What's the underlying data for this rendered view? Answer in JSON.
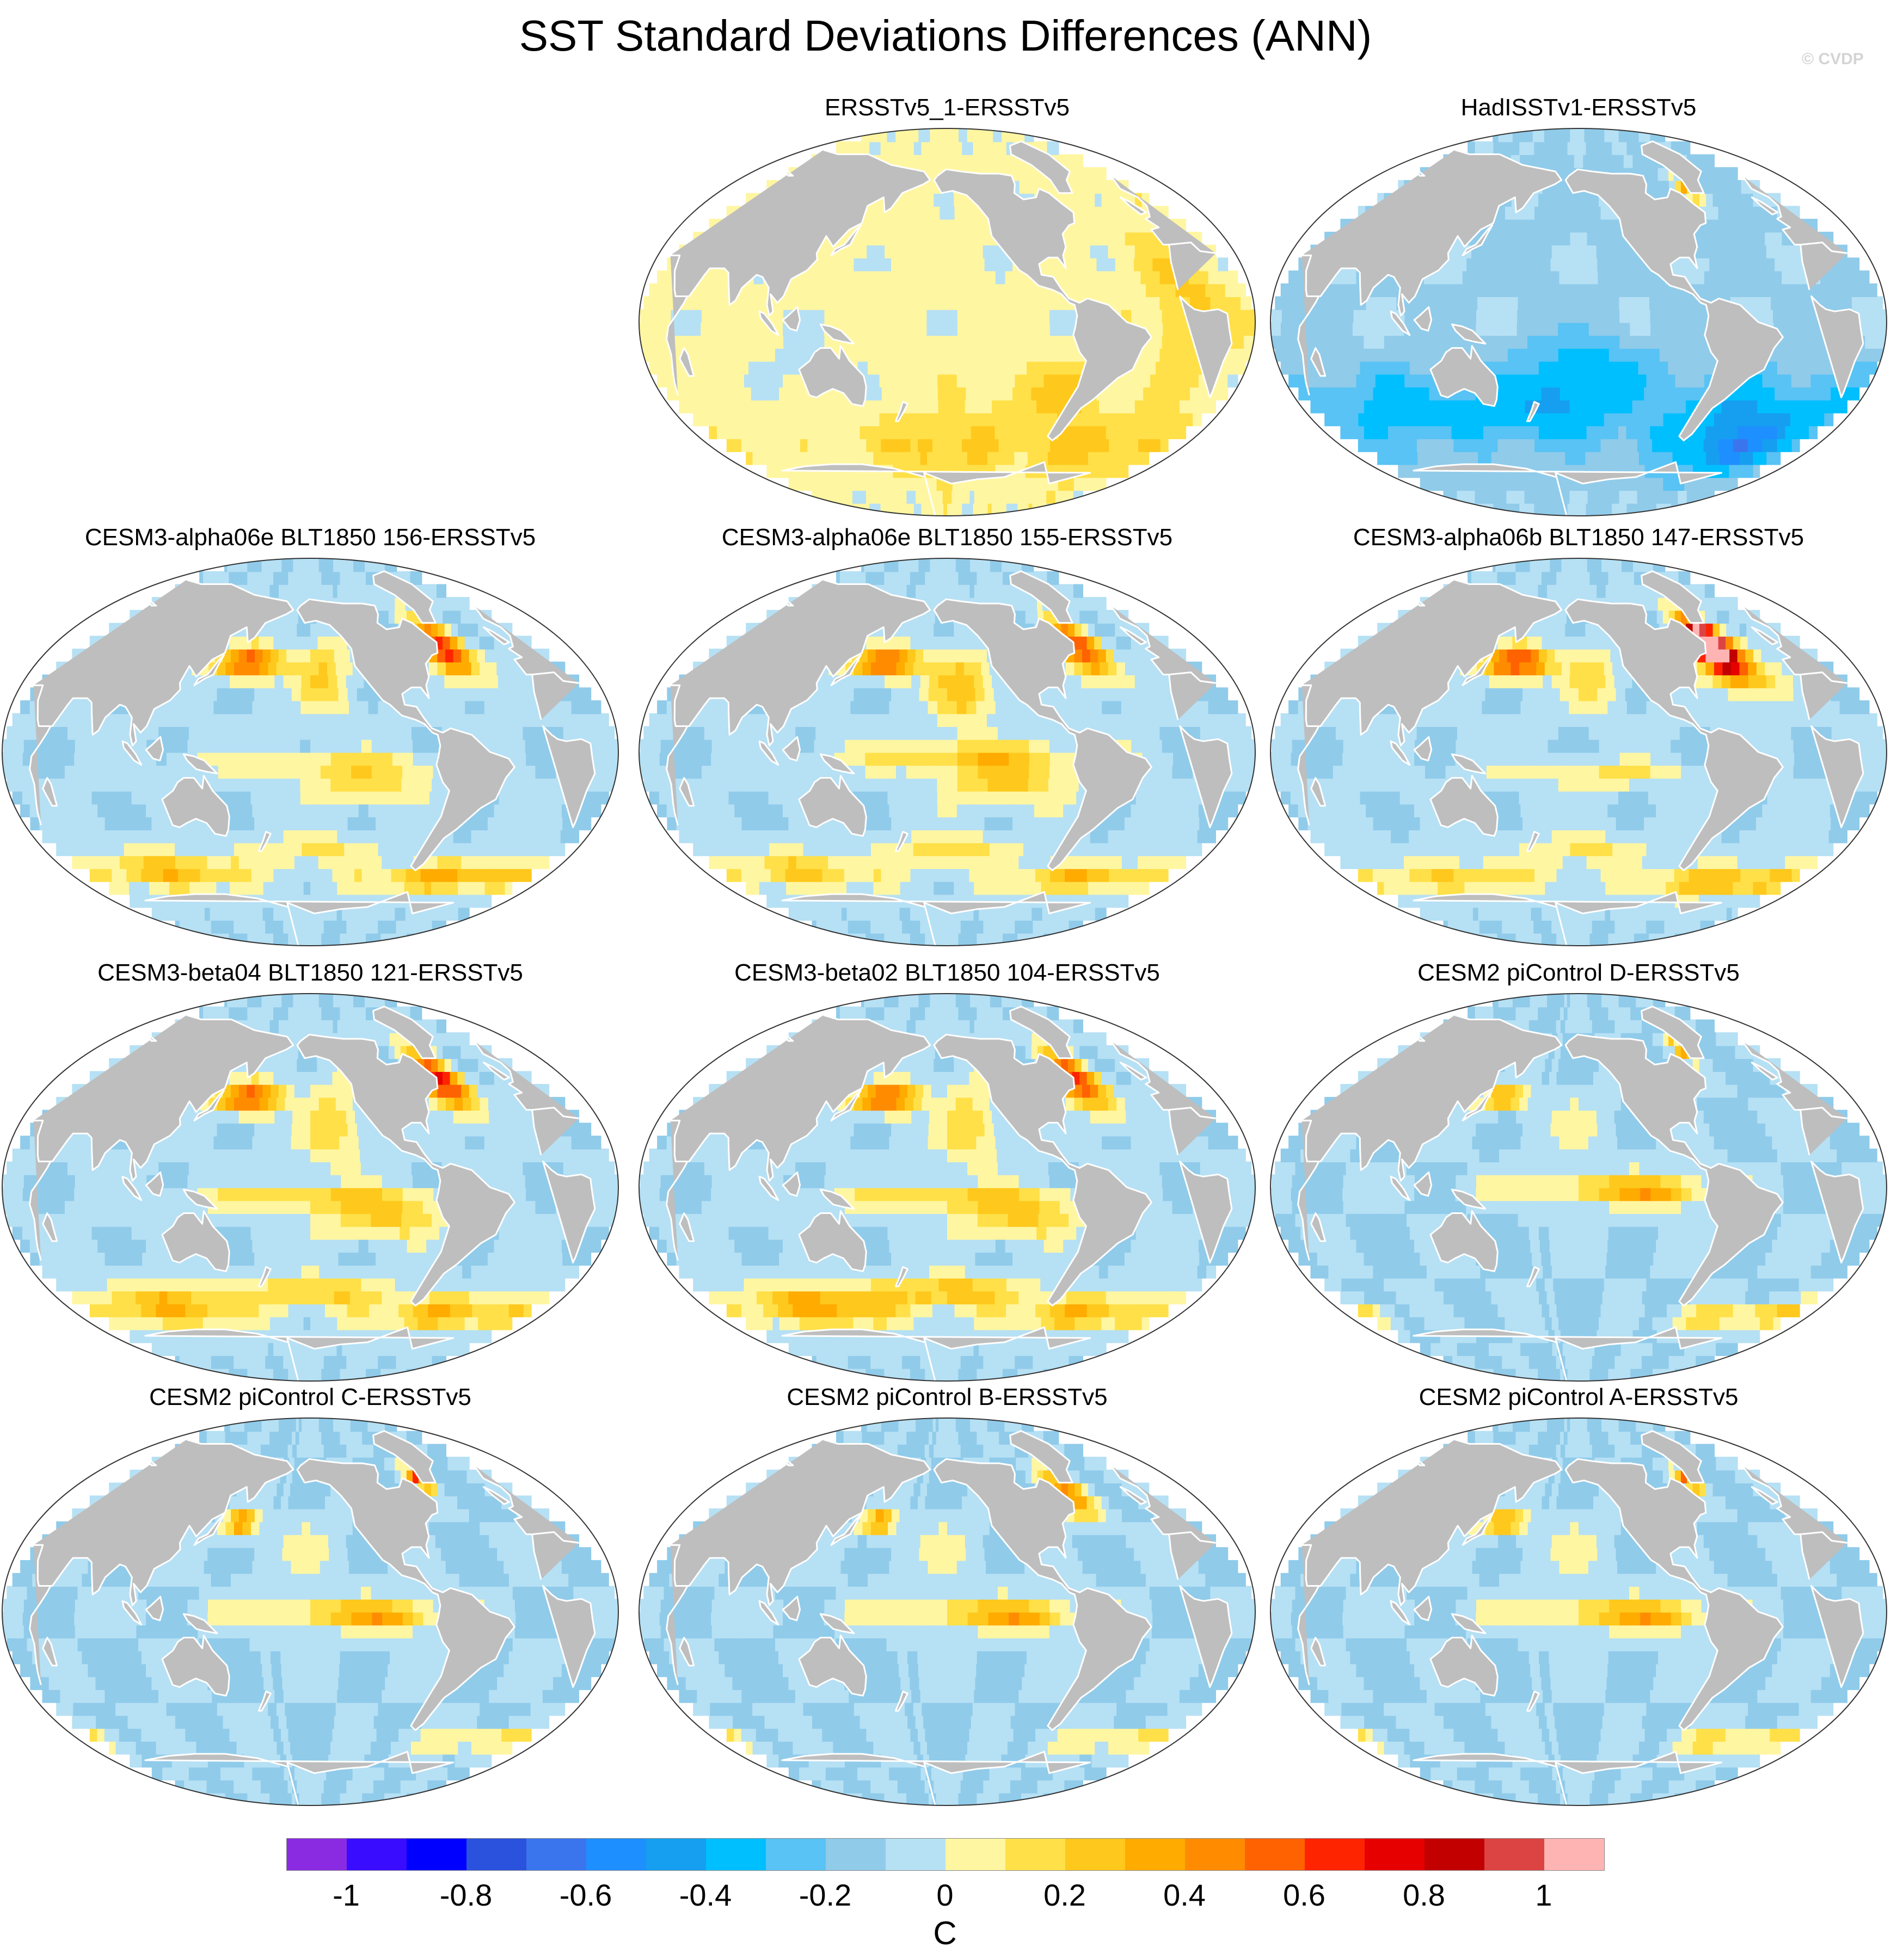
{
  "figure": {
    "title": "SST Standard Deviations Differences (ANN)",
    "credit": "© CVDP"
  },
  "colors": {
    "land": "#bebebe",
    "coast": "#ffffff",
    "outline": "#333333",
    "zero_pos": "#fff6a2",
    "zero_neg": "#b6e0f4"
  },
  "panels": [
    {
      "label": "ERSSTv5_1-ERSSTv5",
      "pattern": "obs_warm",
      "blobs": [
        [
          -160,
          -58,
          0.2,
          40,
          10
        ],
        [
          -30,
          -58,
          0.2,
          40,
          10
        ],
        [
          -10,
          5,
          0.2,
          15,
          25
        ],
        [
          -105,
          -32,
          0.1,
          25,
          10
        ],
        [
          -75,
          -35,
          0.15,
          15,
          10
        ],
        [
          120,
          -20,
          -0.1,
          12,
          10
        ]
      ]
    },
    {
      "label": "HadISSTv1-ERSSTv5",
      "pattern": "obs_cool",
      "blobs": [
        [
          -40,
          -45,
          -0.3,
          50,
          15
        ],
        [
          100,
          -40,
          -0.25,
          40,
          12
        ],
        [
          -170,
          -40,
          -0.25,
          30,
          12
        ],
        [
          -150,
          -20,
          -0.2,
          30,
          10
        ],
        [
          -50,
          62,
          0.4,
          6,
          5
        ],
        [
          -20,
          -60,
          -0.25,
          30,
          8
        ]
      ]
    },
    {
      "label": "CESM3-alpha06e BLT1850 156-ERSSTv5",
      "pattern": "cesm3",
      "blobs": [
        [
          160,
          42,
          0.7,
          18,
          5
        ],
        [
          -145,
          35,
          0.3,
          12,
          12
        ],
        [
          -150,
          -5,
          0.2,
          50,
          4
        ],
        [
          -120,
          -15,
          0.25,
          25,
          6
        ],
        [
          -50,
          48,
          0.7,
          12,
          10
        ],
        [
          -40,
          -58,
          0.4,
          50,
          5
        ],
        [
          100,
          -55,
          0.35,
          40,
          6
        ],
        [
          -150,
          -45,
          0.2,
          30,
          5
        ]
      ]
    },
    {
      "label": "CESM3-alpha06e BLT1850 155-ERSSTv5",
      "pattern": "cesm3",
      "blobs": [
        [
          160,
          42,
          0.65,
          18,
          5
        ],
        [
          -145,
          30,
          0.35,
          14,
          12
        ],
        [
          -140,
          -2,
          0.3,
          50,
          5
        ],
        [
          -120,
          -15,
          0.3,
          25,
          7
        ],
        [
          -50,
          48,
          0.65,
          12,
          10
        ],
        [
          -40,
          -58,
          0.35,
          50,
          5
        ],
        [
          100,
          -55,
          0.3,
          40,
          6
        ],
        [
          -150,
          -45,
          0.25,
          30,
          5
        ]
      ]
    },
    {
      "label": "CESM3-alpha06b BLT1850 147-ERSSTv5",
      "pattern": "cesm3",
      "blobs": [
        [
          160,
          42,
          0.75,
          18,
          5
        ],
        [
          -145,
          35,
          0.25,
          12,
          10
        ],
        [
          -140,
          -10,
          0.2,
          40,
          4
        ],
        [
          -50,
          50,
          1.05,
          10,
          8
        ],
        [
          -45,
          45,
          0.6,
          15,
          12
        ],
        [
          -30,
          -60,
          0.4,
          50,
          5
        ],
        [
          120,
          -58,
          0.3,
          40,
          5
        ],
        [
          -150,
          -45,
          0.2,
          30,
          5
        ]
      ]
    },
    {
      "label": "CESM3-beta04 BLT1850 121-ERSSTv5",
      "pattern": "cesm3",
      "blobs": [
        [
          160,
          42,
          0.7,
          16,
          5
        ],
        [
          -140,
          30,
          0.25,
          15,
          14
        ],
        [
          -150,
          -5,
          0.3,
          50,
          4
        ],
        [
          -110,
          -15,
          0.3,
          25,
          6
        ],
        [
          -50,
          50,
          0.75,
          12,
          10
        ],
        [
          -40,
          -58,
          0.35,
          50,
          6
        ],
        [
          100,
          -55,
          0.4,
          40,
          7
        ],
        [
          -150,
          -48,
          0.3,
          35,
          5
        ]
      ]
    },
    {
      "label": "CESM3-beta02 BLT1850 104-ERSSTv5",
      "pattern": "cesm3",
      "blobs": [
        [
          160,
          42,
          0.65,
          16,
          5
        ],
        [
          -140,
          30,
          0.25,
          15,
          14
        ],
        [
          -150,
          -5,
          0.3,
          50,
          4
        ],
        [
          -110,
          -15,
          0.3,
          25,
          6
        ],
        [
          -50,
          50,
          0.7,
          12,
          10
        ],
        [
          -40,
          -58,
          0.35,
          50,
          6
        ],
        [
          110,
          -55,
          0.45,
          40,
          7
        ],
        [
          -150,
          -48,
          0.35,
          35,
          5
        ]
      ]
    },
    {
      "label": "CESM2 piControl D-ERSSTv5",
      "pattern": "cesm2",
      "blobs": [
        [
          -140,
          0,
          0.3,
          45,
          5
        ],
        [
          -110,
          -3,
          0.25,
          20,
          5
        ],
        [
          150,
          42,
          0.5,
          12,
          4
        ],
        [
          -160,
          30,
          0.15,
          20,
          8
        ],
        [
          -50,
          65,
          0.5,
          6,
          4
        ],
        [
          -35,
          -60,
          0.3,
          30,
          4
        ],
        [
          20,
          -58,
          0.25,
          20,
          4
        ]
      ]
    },
    {
      "label": "CESM2 piControl C-ERSSTv5",
      "pattern": "cesm2",
      "blobs": [
        [
          -140,
          0,
          0.3,
          45,
          5
        ],
        [
          -110,
          -3,
          0.25,
          20,
          5
        ],
        [
          155,
          42,
          0.6,
          8,
          4
        ],
        [
          -160,
          30,
          0.15,
          20,
          8
        ],
        [
          -50,
          62,
          0.7,
          6,
          4
        ],
        [
          -35,
          -60,
          0.2,
          30,
          4
        ],
        [
          20,
          -58,
          0.2,
          20,
          4
        ]
      ]
    },
    {
      "label": "CESM2 piControl B-ERSSTv5",
      "pattern": "cesm2",
      "blobs": [
        [
          -140,
          0,
          0.3,
          45,
          5
        ],
        [
          -110,
          -3,
          0.25,
          20,
          5
        ],
        [
          155,
          42,
          0.55,
          8,
          4
        ],
        [
          -160,
          30,
          0.15,
          20,
          8
        ],
        [
          -50,
          55,
          0.5,
          12,
          8
        ],
        [
          -35,
          -60,
          0.2,
          30,
          4
        ],
        [
          20,
          -58,
          0.2,
          20,
          4
        ]
      ]
    },
    {
      "label": "CESM2 piControl A-ERSSTv5",
      "pattern": "cesm2",
      "blobs": [
        [
          -140,
          0,
          0.3,
          45,
          5
        ],
        [
          -110,
          -3,
          0.25,
          20,
          5
        ],
        [
          150,
          42,
          0.5,
          12,
          4
        ],
        [
          -160,
          30,
          0.15,
          20,
          8
        ],
        [
          -50,
          62,
          0.6,
          6,
          4
        ],
        [
          -35,
          -60,
          0.25,
          30,
          4
        ],
        [
          20,
          -58,
          0.2,
          20,
          4
        ]
      ]
    }
  ],
  "colorbar": {
    "units": "C",
    "colors": [
      "#8a2be2",
      "#3a0cff",
      "#0000ff",
      "#2b52dc",
      "#3a75ee",
      "#1e8fff",
      "#169ff0",
      "#00bfff",
      "#58c3f4",
      "#90cbea",
      "#b6e0f4",
      "#fff6a2",
      "#ffe048",
      "#ffc81c",
      "#ffab00",
      "#ff8c00",
      "#ff6200",
      "#ff2400",
      "#e60000",
      "#c20000",
      "#dc4444",
      "#ffb4b4"
    ],
    "tick_labels": [
      "-1",
      "-0.8",
      "-0.6",
      "-0.4",
      "-0.2",
      "0",
      "0.2",
      "0.4",
      "0.6",
      "0.8",
      "1"
    ]
  }
}
